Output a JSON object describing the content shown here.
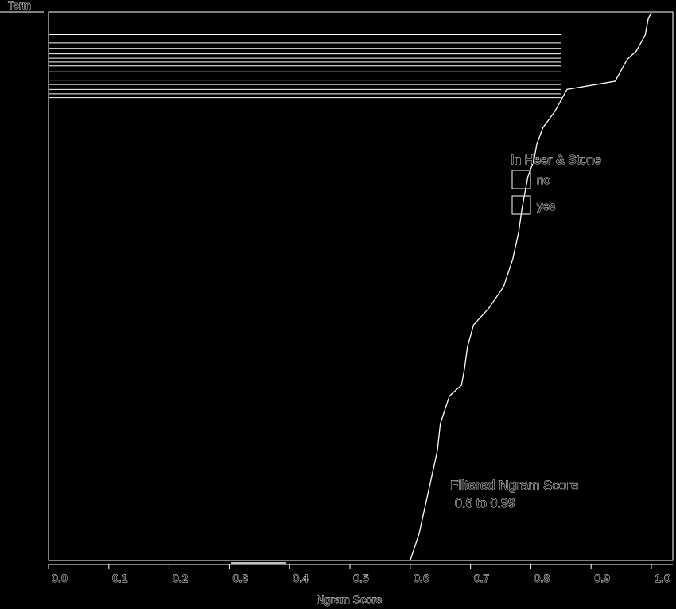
{
  "chart_data": {
    "type": "bar",
    "orientation": "horizontal",
    "title": "",
    "y_header": "Term",
    "xlabel": "Ngram Score",
    "xlim": [
      0.0,
      1.0
    ],
    "x_ticks": [
      "0.0",
      "0.1",
      "0.2",
      "0.3",
      "0.4",
      "0.5",
      "0.6",
      "0.7",
      "0.8",
      "0.9",
      "1.0"
    ],
    "grid": false,
    "legend": {
      "title": "In Heer & Stone",
      "placement": "right-middle",
      "entries": [
        "no",
        "yes"
      ]
    },
    "annotation": {
      "line1": "Filtered Ngram Score",
      "line2": "0.6 to 0.99"
    },
    "sorted_score_curve": [
      [
        0.0,
        1.0
      ],
      [
        0.01,
        0.995
      ],
      [
        0.04,
        0.99
      ],
      [
        0.05,
        0.985
      ],
      [
        0.07,
        0.975
      ],
      [
        0.085,
        0.96
      ],
      [
        0.105,
        0.95
      ],
      [
        0.115,
        0.945
      ],
      [
        0.125,
        0.94
      ],
      [
        0.14,
        0.86
      ],
      [
        0.16,
        0.85
      ],
      [
        0.18,
        0.84
      ],
      [
        0.21,
        0.82
      ],
      [
        0.24,
        0.81
      ],
      [
        0.27,
        0.805
      ],
      [
        0.3,
        0.795
      ],
      [
        0.33,
        0.79
      ],
      [
        0.36,
        0.785
      ],
      [
        0.4,
        0.78
      ],
      [
        0.45,
        0.77
      ],
      [
        0.5,
        0.755
      ],
      [
        0.54,
        0.73
      ],
      [
        0.57,
        0.705
      ],
      [
        0.61,
        0.695
      ],
      [
        0.65,
        0.69
      ],
      [
        0.68,
        0.685
      ],
      [
        0.7,
        0.665
      ],
      [
        0.75,
        0.65
      ],
      [
        0.8,
        0.645
      ],
      [
        0.85,
        0.635
      ],
      [
        0.9,
        0.625
      ],
      [
        0.95,
        0.615
      ],
      [
        1.0,
        0.6
      ]
    ],
    "stacked_term_bars": [
      {
        "rank": 0.04,
        "score": 0.85
      },
      {
        "rank": 0.055,
        "score": 0.85
      },
      {
        "rank": 0.065,
        "score": 0.85
      },
      {
        "rank": 0.075,
        "score": 0.85
      },
      {
        "rank": 0.083,
        "score": 0.85
      },
      {
        "rank": 0.09,
        "score": 0.85
      },
      {
        "rank": 0.097,
        "score": 0.85
      },
      {
        "rank": 0.108,
        "score": 0.85
      },
      {
        "rank": 0.123,
        "score": 0.85
      },
      {
        "rank": 0.131,
        "score": 0.85
      },
      {
        "rank": 0.14,
        "score": 0.85
      },
      {
        "rank": 0.148,
        "score": 0.85
      },
      {
        "rank": 0.155,
        "score": 0.85
      }
    ]
  }
}
